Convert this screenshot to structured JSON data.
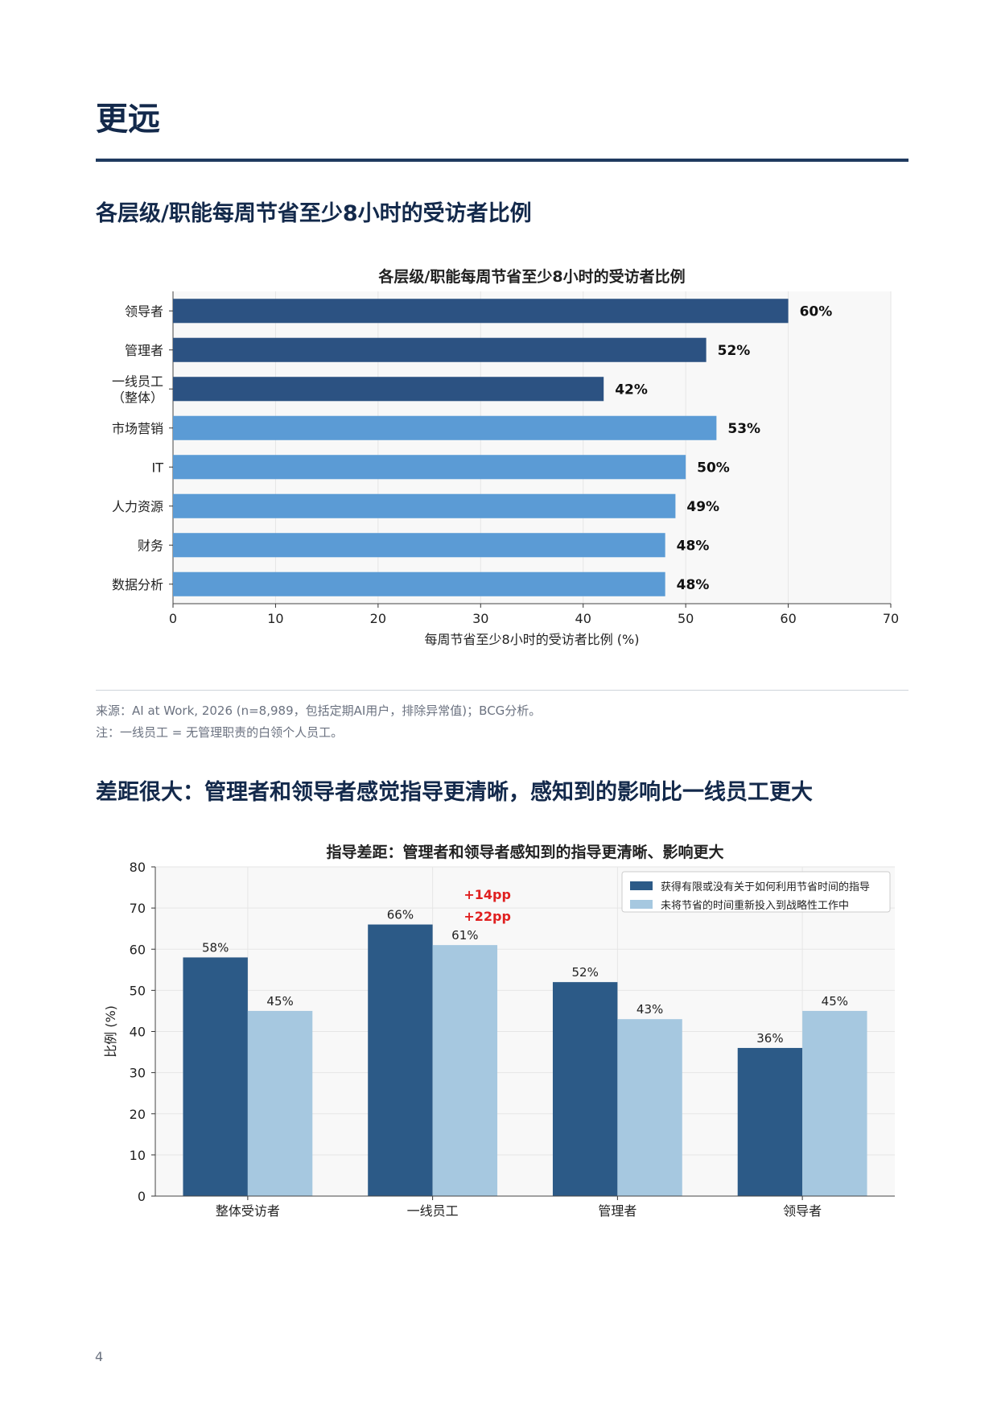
{
  "page": {
    "title": "更远",
    "section1_heading": "各层级/职能每周节省至少8小时的受访者比例",
    "section2_heading": "差距很大：管理者和领导者感觉指导更清晰，感知到的影响比一线员工更大",
    "source_note": "来源：AI at Work, 2026 (n=8,989，包括定期AI用户，排除异常值)；BCG分析。",
    "footnote": "注：一线员工 = 无管理职责的白领个人员工。",
    "page_number": "4"
  },
  "chart_data": [
    {
      "type": "bar",
      "orientation": "horizontal",
      "title": "各层级/职能每周节省至少8小时的受访者比例",
      "xlabel": "每周节省至少8小时的受访者比例 (%)",
      "ylabel": "",
      "xlim": [
        0,
        70
      ],
      "xticks": [
        0,
        10,
        20,
        30,
        40,
        50,
        60,
        70
      ],
      "grid": true,
      "categories": [
        "领导者",
        "管理者",
        "一线员工\n（整体）",
        "市场营销",
        "IT",
        "人力资源",
        "财务",
        "数据分析"
      ],
      "values": [
        60,
        52,
        42,
        53,
        50,
        49,
        48,
        48
      ],
      "data_labels": [
        "60%",
        "52%",
        "42%",
        "53%",
        "50%",
        "49%",
        "48%",
        "48%"
      ],
      "bar_colors": [
        "#2c5282",
        "#2c5282",
        "#2c5282",
        "#5b9bd5",
        "#5b9bd5",
        "#5b9bd5",
        "#5b9bd5",
        "#5b9bd5"
      ]
    },
    {
      "type": "bar",
      "orientation": "vertical",
      "title": "指导差距：管理者和领导者感知到的指导更清晰、影响更大",
      "xlabel": "",
      "ylabel": "比例 (%)",
      "ylim": [
        0,
        80
      ],
      "yticks": [
        0,
        10,
        20,
        30,
        40,
        50,
        60,
        70,
        80
      ],
      "grid": true,
      "legend_position": "top-right",
      "categories": [
        "整体受访者",
        "一线员工",
        "管理者",
        "领导者"
      ],
      "series": [
        {
          "name": "获得有限或没有关于如何利用节省时间的指导",
          "color": "#2c5a87",
          "values": [
            58,
            66,
            52,
            36
          ],
          "labels": [
            "58%",
            "66%",
            "52%",
            "36%"
          ]
        },
        {
          "name": "未将节省的时间重新投入到战略性工作中",
          "color": "#a6c8e0",
          "values": [
            45,
            61,
            43,
            45
          ],
          "labels": [
            "45%",
            "61%",
            "43%",
            "45%"
          ]
        }
      ],
      "annotations": [
        {
          "text": "+14pp",
          "color": "#e02020"
        },
        {
          "text": "+22pp",
          "color": "#e02020"
        }
      ]
    }
  ]
}
